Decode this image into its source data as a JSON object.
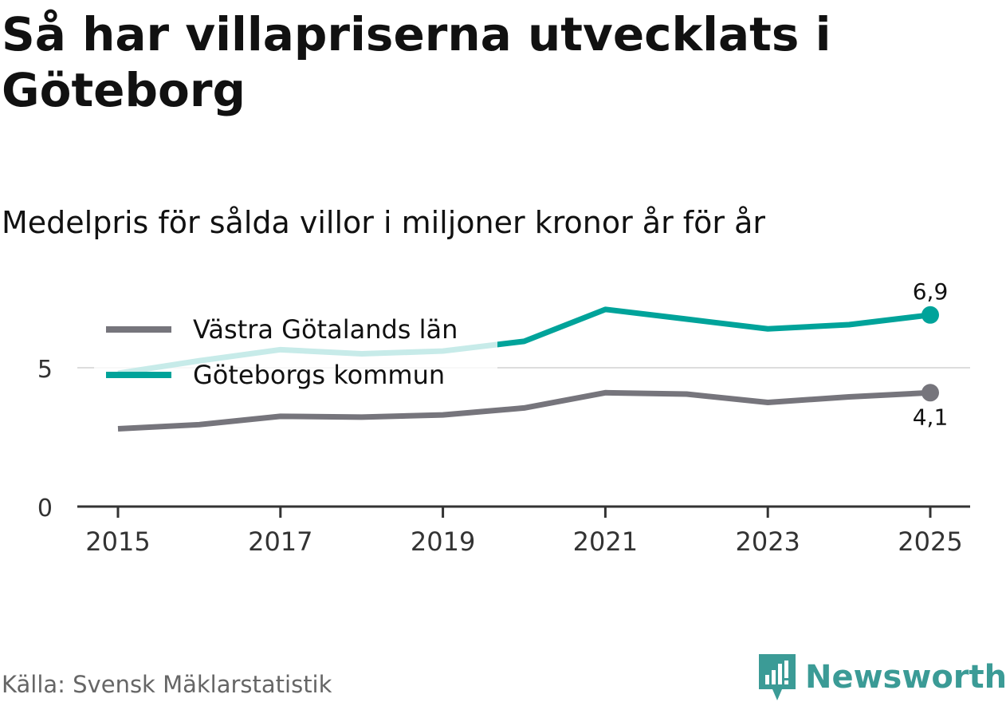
{
  "header": {
    "title": "Så har villapriserna utvecklats i Göteborg",
    "subtitle": "Medelpris för sålda villor i miljoner kronor år för år"
  },
  "footer": {
    "source": "Källa: Svensk Mäklarstatistik",
    "brand": "Newsworthy"
  },
  "colors": {
    "goteborg": "#00a39a",
    "vastra": "#76757c",
    "goteborg_faded": "#c9ebe8",
    "grid": "#dddddd",
    "axis": "#333333",
    "brand": "#3b9b96"
  },
  "chart_data": {
    "type": "line",
    "title": "Så har villapriserna utvecklats i Göteborg",
    "subtitle": "Medelpris för sålda villor i miljoner kronor år för år",
    "x": [
      2015,
      2016,
      2017,
      2018,
      2019,
      2020,
      2021,
      2022,
      2023,
      2024,
      2025
    ],
    "xticks": [
      "2015",
      "2017",
      "2019",
      "2021",
      "2023",
      "2025"
    ],
    "yticks": [
      "0",
      "5"
    ],
    "ylim": [
      0,
      7.9
    ],
    "gridlines": [
      5
    ],
    "xlabel": "",
    "ylabel": "",
    "series": [
      {
        "name": "Västra Götalands län",
        "values": [
          2.8,
          2.95,
          3.25,
          3.22,
          3.3,
          3.55,
          4.1,
          4.05,
          3.75,
          3.95,
          4.1
        ],
        "end_label": "4,1"
      },
      {
        "name": "Göteborgs kommun",
        "values": [
          4.8,
          5.25,
          5.65,
          5.5,
          5.6,
          5.95,
          7.1,
          6.75,
          6.4,
          6.55,
          6.9
        ],
        "end_label": "6,9"
      }
    ],
    "legend_position": "top-left"
  }
}
